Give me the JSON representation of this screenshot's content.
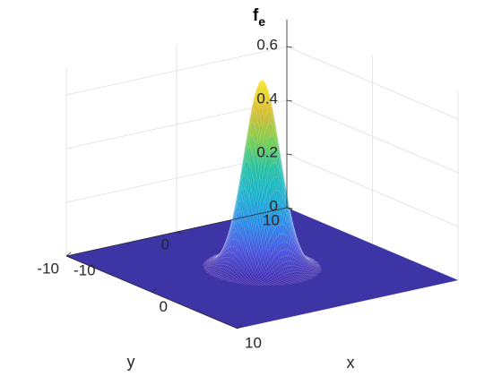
{
  "chart_data": {
    "type": "surface",
    "title": "f",
    "title_subscript": "e",
    "xlabel": "x",
    "ylabel": "y",
    "zlabel": "",
    "xlim": [
      -10,
      10
    ],
    "ylim": [
      -10,
      10
    ],
    "zlim": [
      0,
      0.7
    ],
    "x_ticks": [
      -10,
      0,
      10
    ],
    "y_ticks": [
      -10,
      0,
      10
    ],
    "z_ticks": [
      0,
      0.2,
      0.4,
      0.6
    ],
    "x_tick_labels": [
      "-10",
      "0",
      "10"
    ],
    "y_tick_labels": [
      "-10",
      "0",
      "10"
    ],
    "z_tick_labels": [
      "0",
      "0.2",
      "0.4",
      "0.6"
    ],
    "grid": true,
    "colormap": "parula",
    "surface": {
      "shape": "gaussian peak",
      "peak_value": 0.7,
      "peak_x": 0,
      "peak_y": 0,
      "sigma": 1.3,
      "baseline": 0
    },
    "colors": {
      "base": "#3d35a6",
      "peak": "#f9e52a"
    }
  }
}
